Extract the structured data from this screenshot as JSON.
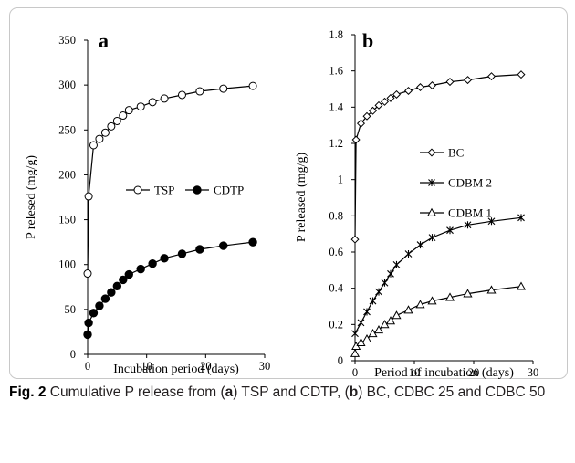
{
  "caption": {
    "label": "Fig. 2",
    "parts": [
      {
        "text": "  Cumulative P release from (",
        "bold": false
      },
      {
        "text": "a",
        "bold": true
      },
      {
        "text": ") TSP and CDTP, (",
        "bold": false
      },
      {
        "text": "b",
        "bold": true
      },
      {
        "text": ") BC, CDBC 25 and CDBC 50",
        "bold": false
      }
    ]
  },
  "chart_data": [
    {
      "panel_label": "a",
      "type": "scatter",
      "lines": true,
      "xlabel": "Incubation period (days)",
      "ylabel": "P relesed (mg/g)",
      "xlim": [
        0,
        30
      ],
      "ylim": [
        0,
        350
      ],
      "xticks": [
        0,
        10,
        20,
        30
      ],
      "yticks": [
        0,
        50,
        100,
        150,
        200,
        250,
        300,
        350
      ],
      "grid": false,
      "legend_placement": "center-right",
      "series": [
        {
          "name": "TSP",
          "marker": "open-circle",
          "x": [
            0,
            0.17,
            1,
            2,
            3,
            4,
            5,
            6,
            7,
            9,
            11,
            13,
            16,
            19,
            23,
            28
          ],
          "y": [
            90,
            176,
            233,
            240,
            247,
            254,
            260,
            266,
            272,
            276,
            281,
            285,
            289,
            293,
            296,
            299
          ]
        },
        {
          "name": "CDTP",
          "marker": "filled-circle",
          "x": [
            0,
            0.17,
            1,
            2,
            3,
            4,
            5,
            6,
            7,
            9,
            11,
            13,
            16,
            19,
            23,
            28
          ],
          "y": [
            22,
            35,
            46,
            54,
            62,
            69,
            76,
            83,
            89,
            95,
            101,
            107,
            112,
            117,
            121,
            125
          ]
        }
      ]
    },
    {
      "panel_label": "b",
      "type": "scatter",
      "lines": true,
      "xlabel": "Period of incubation (days)",
      "ylabel": "P released (mg/g)",
      "xlim": [
        0,
        30
      ],
      "ylim": [
        0,
        1.8
      ],
      "xticks": [
        0,
        10,
        20,
        30
      ],
      "yticks": [
        0,
        0.2,
        0.4,
        0.6,
        0.8,
        1,
        1.2,
        1.4,
        1.6,
        1.8
      ],
      "grid": false,
      "legend_placement": "center-right",
      "series": [
        {
          "name": "BC",
          "marker": "open-diamond",
          "x": [
            0,
            0.17,
            1,
            2,
            3,
            4,
            5,
            6,
            7,
            9,
            11,
            13,
            16,
            19,
            23,
            28
          ],
          "y": [
            0.67,
            1.22,
            1.31,
            1.35,
            1.38,
            1.41,
            1.43,
            1.45,
            1.47,
            1.49,
            1.51,
            1.52,
            1.54,
            1.55,
            1.57,
            1.58
          ]
        },
        {
          "name": "CDBM 2",
          "marker": "asterisk",
          "x": [
            0,
            1,
            2,
            3,
            4,
            5,
            6,
            7,
            9,
            11,
            13,
            16,
            19,
            23,
            28
          ],
          "y": [
            0.15,
            0.21,
            0.27,
            0.33,
            0.38,
            0.43,
            0.48,
            0.53,
            0.59,
            0.64,
            0.68,
            0.72,
            0.75,
            0.77,
            0.79
          ]
        },
        {
          "name": "CDBM 1",
          "marker": "open-triangle",
          "x": [
            0,
            0.17,
            1,
            2,
            3,
            4,
            5,
            6,
            7,
            9,
            11,
            13,
            16,
            19,
            23,
            28
          ],
          "y": [
            0.04,
            0.08,
            0.1,
            0.12,
            0.15,
            0.17,
            0.2,
            0.22,
            0.25,
            0.28,
            0.31,
            0.33,
            0.35,
            0.37,
            0.39,
            0.41
          ]
        }
      ]
    }
  ]
}
